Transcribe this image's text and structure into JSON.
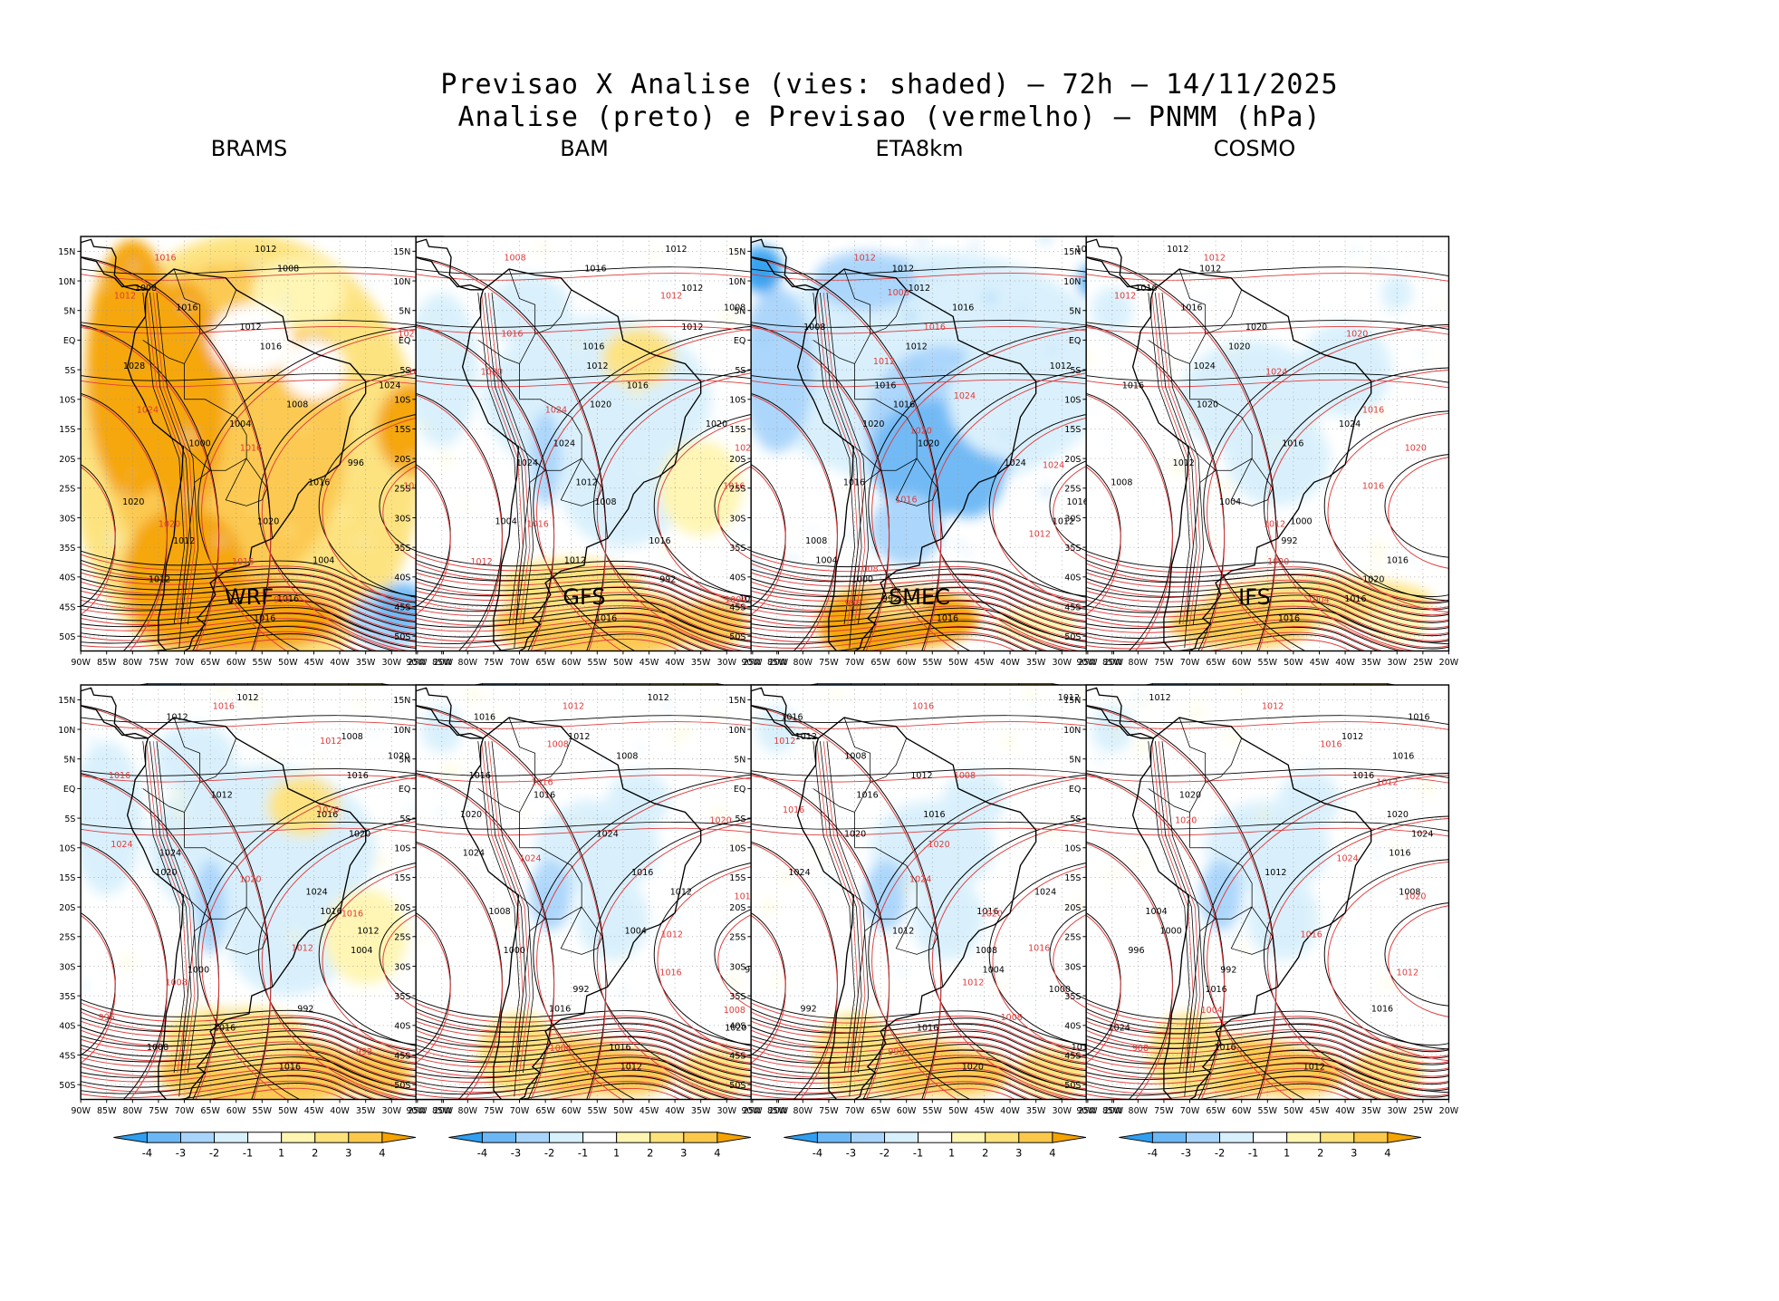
{
  "title": {
    "line1": "Previsao X Analise (vies: shaded) – 72h – 14/11/2025",
    "line2": "Analise (preto) e Previsao (vermelho) – PNMM (hPa)"
  },
  "axes": {
    "lat_labels": [
      "15N",
      "10N",
      "5N",
      "EQ",
      "5S",
      "10S",
      "15S",
      "20S",
      "25S",
      "30S",
      "35S",
      "40S",
      "45S",
      "50S"
    ],
    "lon_labels": [
      "90W",
      "85W",
      "80W",
      "75W",
      "70W",
      "65W",
      "60W",
      "55W",
      "50W",
      "45W",
      "40W",
      "35W",
      "30W",
      "25W",
      "20W"
    ]
  },
  "colorbar": {
    "labels": [
      "-4",
      "-3",
      "-2",
      "-1",
      "1",
      "2",
      "3",
      "4"
    ],
    "colors": [
      "#2f9ef0",
      "#6bb7f5",
      "#a8d4fb",
      "#d8f0fc",
      "#ffffff",
      "#fff5b0",
      "#fde27a",
      "#fcc84a",
      "#f5a300"
    ]
  },
  "panels": [
    {
      "name": "BRAMS",
      "bias": "warm-strong",
      "analysis_labels": [
        "1012",
        "1008",
        "1008",
        "1016",
        "1012",
        "1016",
        "1028",
        "1024",
        "1008",
        "1004",
        "1000",
        "996",
        "1016",
        "1020",
        "1020",
        "1012",
        "1004",
        "1012",
        "1016",
        "1016"
      ],
      "forecast_labels": [
        "1016",
        "1012",
        "1020",
        "1020",
        "1024",
        "1016",
        "1008",
        "1020",
        "1016",
        "996"
      ]
    },
    {
      "name": "BAM",
      "bias": "mixed",
      "analysis_labels": [
        "1012",
        "1016",
        "1012",
        "1008",
        "1012",
        "1016",
        "1012",
        "1016",
        "1020",
        "1020",
        "1024",
        "1024",
        "1012",
        "1008",
        "1004",
        "1016",
        "1012",
        "992",
        "1000",
        "1016"
      ],
      "forecast_labels": [
        "1008",
        "1012",
        "1016",
        "1020",
        "1024",
        "1020",
        "1016",
        "1016",
        "1012",
        "1004"
      ]
    },
    {
      "name": "ETA8km",
      "bias": "cold-strong",
      "analysis_labels": [
        "1012",
        "1012",
        "1012",
        "1016",
        "1008",
        "1012",
        "1012",
        "1016",
        "1016",
        "1020",
        "1020",
        "1024",
        "1016",
        "1016",
        "1012",
        "1008",
        "1004",
        "1000",
        "992",
        "1016"
      ],
      "forecast_labels": [
        "1012",
        "1008",
        "1016",
        "1012",
        "1024",
        "1020",
        "1024",
        "1016",
        "1012",
        "1008",
        "996"
      ]
    },
    {
      "name": "COSMO",
      "bias": "mixed-light",
      "analysis_labels": [
        "1012",
        "1012",
        "1016",
        "1016",
        "1020",
        "1020",
        "1024",
        "1016",
        "1020",
        "1024",
        "1016",
        "1012",
        "1008",
        "1004",
        "1000",
        "992",
        "1016",
        "1020",
        "1016",
        "1016"
      ],
      "forecast_labels": [
        "1012",
        "1012",
        "1020",
        "1024",
        "1016",
        "1020",
        "1016",
        "1012",
        "1020",
        "1004"
      ]
    },
    {
      "name": "WRF",
      "bias": "mixed",
      "analysis_labels": [
        "1012",
        "1012",
        "1008",
        "1020",
        "1016",
        "1012",
        "1016",
        "1020",
        "1024",
        "1020",
        "1024",
        "1016",
        "1012",
        "1004",
        "1000",
        "996",
        "992",
        "1016",
        "1008",
        "1016"
      ],
      "forecast_labels": [
        "1016",
        "1012",
        "1016",
        "1020",
        "1024",
        "1020",
        "1016",
        "1012",
        "1008",
        "996",
        "992"
      ]
    },
    {
      "name": "GFS",
      "bias": "light",
      "analysis_labels": [
        "1012",
        "1016",
        "1012",
        "1008",
        "1016",
        "1016",
        "1020",
        "1024",
        "1024",
        "1016",
        "1012",
        "1008",
        "1004",
        "1000",
        "996",
        "992",
        "1016",
        "1020",
        "1016",
        "1012"
      ],
      "forecast_labels": [
        "1012",
        "1008",
        "1016",
        "1020",
        "1024",
        "1016",
        "1012",
        "1016",
        "1008",
        "1004"
      ]
    },
    {
      "name": "SMEC",
      "bias": "light",
      "analysis_labels": [
        "1012",
        "1016",
        "1012",
        "1008",
        "1012",
        "1016",
        "1016",
        "1020",
        "1020",
        "1024",
        "1024",
        "1016",
        "1012",
        "1008",
        "1004",
        "1000",
        "992",
        "1016",
        "1016",
        "1020"
      ],
      "forecast_labels": [
        "1016",
        "1012",
        "1008",
        "1016",
        "1020",
        "1024",
        "1020",
        "1016",
        "1012",
        "1008",
        "996"
      ]
    },
    {
      "name": "IFS",
      "bias": "light",
      "analysis_labels": [
        "1012",
        "1016",
        "1012",
        "1016",
        "1016",
        "1020",
        "1020",
        "1024",
        "1016",
        "1012",
        "1008",
        "1004",
        "1000",
        "996",
        "992",
        "1016",
        "1016",
        "1024",
        "1016",
        "1012"
      ],
      "forecast_labels": [
        "1012",
        "1016",
        "1012",
        "1020",
        "1024",
        "1020",
        "1016",
        "1012",
        "1004",
        "988"
      ]
    }
  ]
}
